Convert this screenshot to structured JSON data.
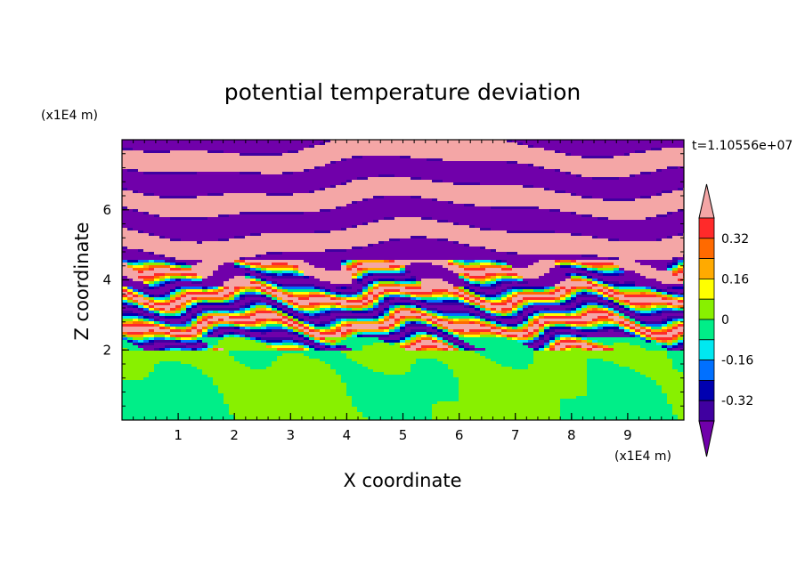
{
  "chart_data": {
    "type": "heatmap",
    "title": "potential temperature deviation",
    "xlabel": "X coordinate",
    "ylabel": "Z coordinate",
    "x_unit": "(x1E4 m)",
    "y_unit": "(x1E4 m)",
    "time_label": "t=1.10556e+07",
    "xlim": [
      0,
      10
    ],
    "ylim": [
      0,
      8
    ],
    "x_ticks": [
      "1",
      "2",
      "3",
      "4",
      "5",
      "6",
      "7",
      "8",
      "9"
    ],
    "y_ticks": [
      "2",
      "4",
      "6"
    ],
    "colorbar": {
      "tick_labels": [
        "0.32",
        "0.16",
        "0",
        "-0.16",
        "-0.32"
      ],
      "tick_values": [
        0.32,
        0.16,
        0,
        -0.16,
        -0.32
      ],
      "levels_top_to_bottom": [
        {
          "level": "above 0.4",
          "color": "#f4a6a6"
        },
        {
          "level": "0.32 to 0.4",
          "color": "#ff2a2a"
        },
        {
          "level": "0.24 to 0.32",
          "color": "#ff6a00"
        },
        {
          "level": "0.16 to 0.24",
          "color": "#ffaa00"
        },
        {
          "level": "0.08 to 0.16",
          "color": "#ffff00"
        },
        {
          "level": "0 to 0.08",
          "color": "#88f000"
        },
        {
          "level": "-0.08 to 0",
          "color": "#00ee88"
        },
        {
          "level": "-0.16 to -0.08",
          "color": "#00e8f0"
        },
        {
          "level": "-0.24 to -0.16",
          "color": "#0070ff"
        },
        {
          "level": "-0.32 to -0.24",
          "color": "#0000b0"
        },
        {
          "level": "-0.4 to -0.32",
          "color": "#4000a0"
        },
        {
          "level": "below -0.4",
          "color": "#7000aa"
        }
      ]
    },
    "field_description_layers": [
      {
        "z_range": [
          0,
          2
        ],
        "dominant": [
          "#88f000",
          "#00ee88"
        ]
      },
      {
        "z_range": [
          2,
          4.5
        ],
        "dominant": "mixed all levels"
      },
      {
        "z_range": [
          4.5,
          8
        ],
        "dominant": [
          "#f4a6a6",
          "#7000aa"
        ]
      }
    ]
  }
}
